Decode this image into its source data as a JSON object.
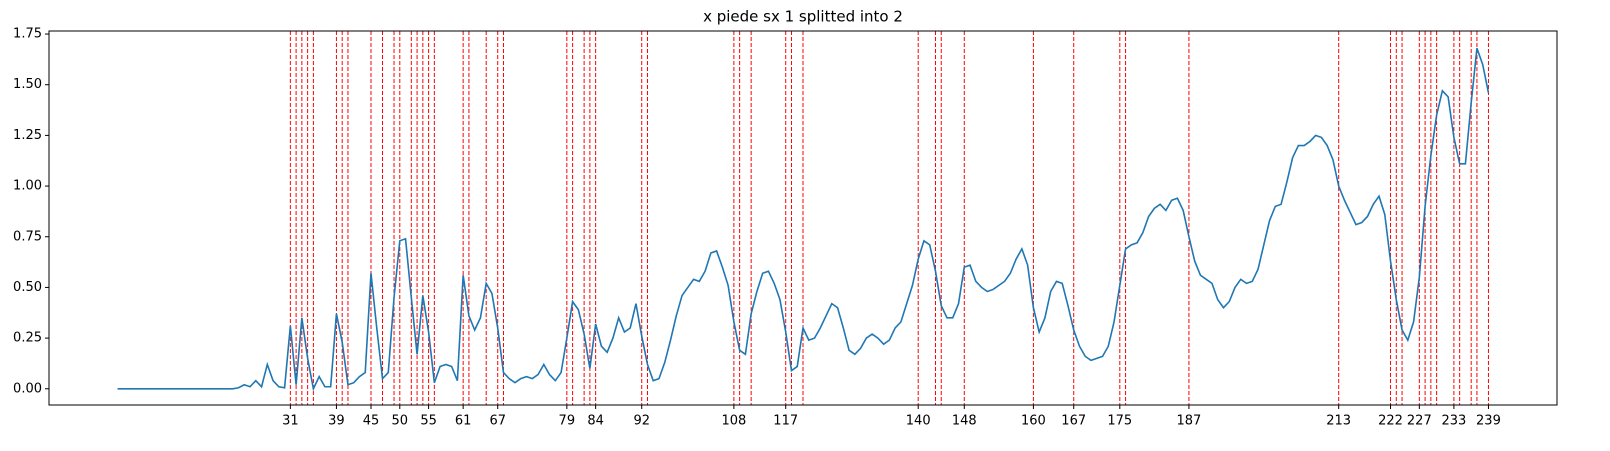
{
  "chart_data": {
    "type": "line",
    "title": "x piede sx 1 splitted into 2",
    "x": [
      1,
      2,
      3,
      4,
      5,
      6,
      7,
      8,
      9,
      10,
      11,
      12,
      13,
      14,
      15,
      16,
      17,
      18,
      19,
      20,
      21,
      22,
      23,
      24,
      25,
      26,
      27,
      28,
      29,
      30,
      31,
      32,
      33,
      34,
      35,
      36,
      37,
      38,
      39,
      40,
      41,
      42,
      43,
      44,
      45,
      46,
      47,
      48,
      49,
      50,
      51,
      52,
      53,
      54,
      55,
      56,
      57,
      58,
      59,
      60,
      61,
      62,
      63,
      64,
      65,
      66,
      67,
      68,
      69,
      70,
      71,
      72,
      73,
      74,
      75,
      76,
      77,
      78,
      79,
      80,
      81,
      82,
      83,
      84,
      85,
      86,
      87,
      88,
      89,
      90,
      91,
      92,
      93,
      94,
      95,
      96,
      97,
      98,
      99,
      100,
      101,
      102,
      103,
      104,
      105,
      106,
      107,
      108,
      109,
      110,
      111,
      112,
      113,
      114,
      115,
      116,
      117,
      118,
      119,
      120,
      121,
      122,
      123,
      124,
      125,
      126,
      127,
      128,
      129,
      130,
      131,
      132,
      133,
      134,
      135,
      136,
      137,
      138,
      139,
      140,
      141,
      142,
      143,
      144,
      145,
      146,
      147,
      148,
      149,
      150,
      151,
      152,
      153,
      154,
      155,
      156,
      157,
      158,
      159,
      160,
      161,
      162,
      163,
      164,
      165,
      166,
      167,
      168,
      169,
      170,
      171,
      172,
      173,
      174,
      175,
      176,
      177,
      178,
      179,
      180,
      181,
      182,
      183,
      184,
      185,
      186,
      187,
      188,
      189,
      190,
      191,
      192,
      193,
      194,
      195,
      196,
      197,
      198,
      199,
      200,
      201,
      202,
      203,
      204,
      205,
      206,
      207,
      208,
      209,
      210,
      211,
      212,
      213,
      214,
      215,
      216,
      217,
      218,
      219,
      220,
      221,
      222,
      223,
      224,
      225,
      226,
      227,
      228,
      229,
      230,
      231,
      232,
      233,
      234,
      235,
      236,
      237,
      238,
      239
    ],
    "values": [
      0,
      0,
      0,
      0,
      0,
      0,
      0,
      0,
      0,
      0,
      0,
      0,
      0,
      0,
      0,
      0,
      0,
      0,
      0,
      0,
      0,
      0.005,
      0.02,
      0.01,
      0.04,
      0.01,
      0.12,
      0.04,
      0.01,
      0.005,
      0.31,
      0.02,
      0.35,
      0.15,
      0.0,
      0.06,
      0.01,
      0.01,
      0.37,
      0.23,
      0.02,
      0.03,
      0.06,
      0.08,
      0.57,
      0.3,
      0.05,
      0.08,
      0.45,
      0.73,
      0.74,
      0.45,
      0.17,
      0.46,
      0.28,
      0.03,
      0.11,
      0.12,
      0.11,
      0.04,
      0.56,
      0.36,
      0.29,
      0.35,
      0.52,
      0.47,
      0.3,
      0.08,
      0.05,
      0.03,
      0.05,
      0.06,
      0.05,
      0.07,
      0.12,
      0.07,
      0.04,
      0.08,
      0.25,
      0.43,
      0.39,
      0.27,
      0.1,
      0.32,
      0.21,
      0.18,
      0.25,
      0.35,
      0.28,
      0.3,
      0.42,
      0.26,
      0.12,
      0.04,
      0.05,
      0.13,
      0.24,
      0.36,
      0.46,
      0.5,
      0.54,
      0.53,
      0.58,
      0.67,
      0.68,
      0.6,
      0.51,
      0.33,
      0.19,
      0.17,
      0.37,
      0.48,
      0.57,
      0.58,
      0.52,
      0.44,
      0.28,
      0.09,
      0.11,
      0.3,
      0.24,
      0.25,
      0.3,
      0.36,
      0.42,
      0.4,
      0.3,
      0.19,
      0.17,
      0.2,
      0.25,
      0.27,
      0.25,
      0.22,
      0.24,
      0.3,
      0.33,
      0.42,
      0.51,
      0.64,
      0.73,
      0.71,
      0.58,
      0.41,
      0.35,
      0.35,
      0.42,
      0.6,
      0.61,
      0.53,
      0.5,
      0.48,
      0.49,
      0.51,
      0.53,
      0.57,
      0.64,
      0.69,
      0.61,
      0.4,
      0.28,
      0.35,
      0.48,
      0.53,
      0.52,
      0.41,
      0.29,
      0.21,
      0.16,
      0.14,
      0.15,
      0.16,
      0.21,
      0.33,
      0.51,
      0.69,
      0.71,
      0.72,
      0.77,
      0.85,
      0.89,
      0.91,
      0.88,
      0.93,
      0.94,
      0.88,
      0.75,
      0.63,
      0.56,
      0.54,
      0.52,
      0.44,
      0.4,
      0.43,
      0.5,
      0.54,
      0.52,
      0.53,
      0.59,
      0.71,
      0.83,
      0.9,
      0.91,
      1.02,
      1.14,
      1.2,
      1.2,
      1.22,
      1.25,
      1.24,
      1.2,
      1.13,
      1.0,
      0.93,
      0.87,
      0.81,
      0.82,
      0.85,
      0.91,
      0.95,
      0.86,
      0.63,
      0.44,
      0.29,
      0.24,
      0.33,
      0.55,
      0.9,
      1.15,
      1.35,
      1.47,
      1.44,
      1.24,
      1.11,
      1.11,
      1.41,
      1.68,
      1.6,
      1.46
    ],
    "color": "#1f77b4",
    "vlines": [
      31,
      32,
      33,
      34,
      35,
      39,
      40,
      41,
      45,
      47,
      49,
      50,
      52,
      53,
      54,
      55,
      56,
      61,
      62,
      65,
      67,
      68,
      79,
      80,
      82,
      83,
      84,
      92,
      93,
      108,
      109,
      111,
      117,
      118,
      120,
      140,
      143,
      144,
      148,
      160,
      167,
      175,
      176,
      187,
      213,
      222,
      223,
      224,
      227,
      228,
      229,
      230,
      233,
      234,
      236,
      237,
      239
    ],
    "vline_color": "#ff0000",
    "xlim": [
      -10.9,
      250.9
    ],
    "xticks": [
      31,
      39,
      45,
      50,
      55,
      61,
      67,
      79,
      84,
      92,
      108,
      117,
      140,
      148,
      160,
      167,
      175,
      187,
      213,
      222,
      227,
      233,
      239
    ],
    "ylim": [
      -0.08,
      1.765
    ],
    "yticks": [
      {
        "value": 0,
        "label": "0.00"
      },
      {
        "value": 0.25,
        "label": "0.25"
      },
      {
        "value": 0.5,
        "label": "0.50"
      },
      {
        "value": 0.75,
        "label": "0.75"
      },
      {
        "value": 1,
        "label": "1.00"
      },
      {
        "value": 1.25,
        "label": "1.25"
      },
      {
        "value": 1.5,
        "label": "1.50"
      },
      {
        "value": 1.75,
        "label": "1.75"
      }
    ]
  }
}
